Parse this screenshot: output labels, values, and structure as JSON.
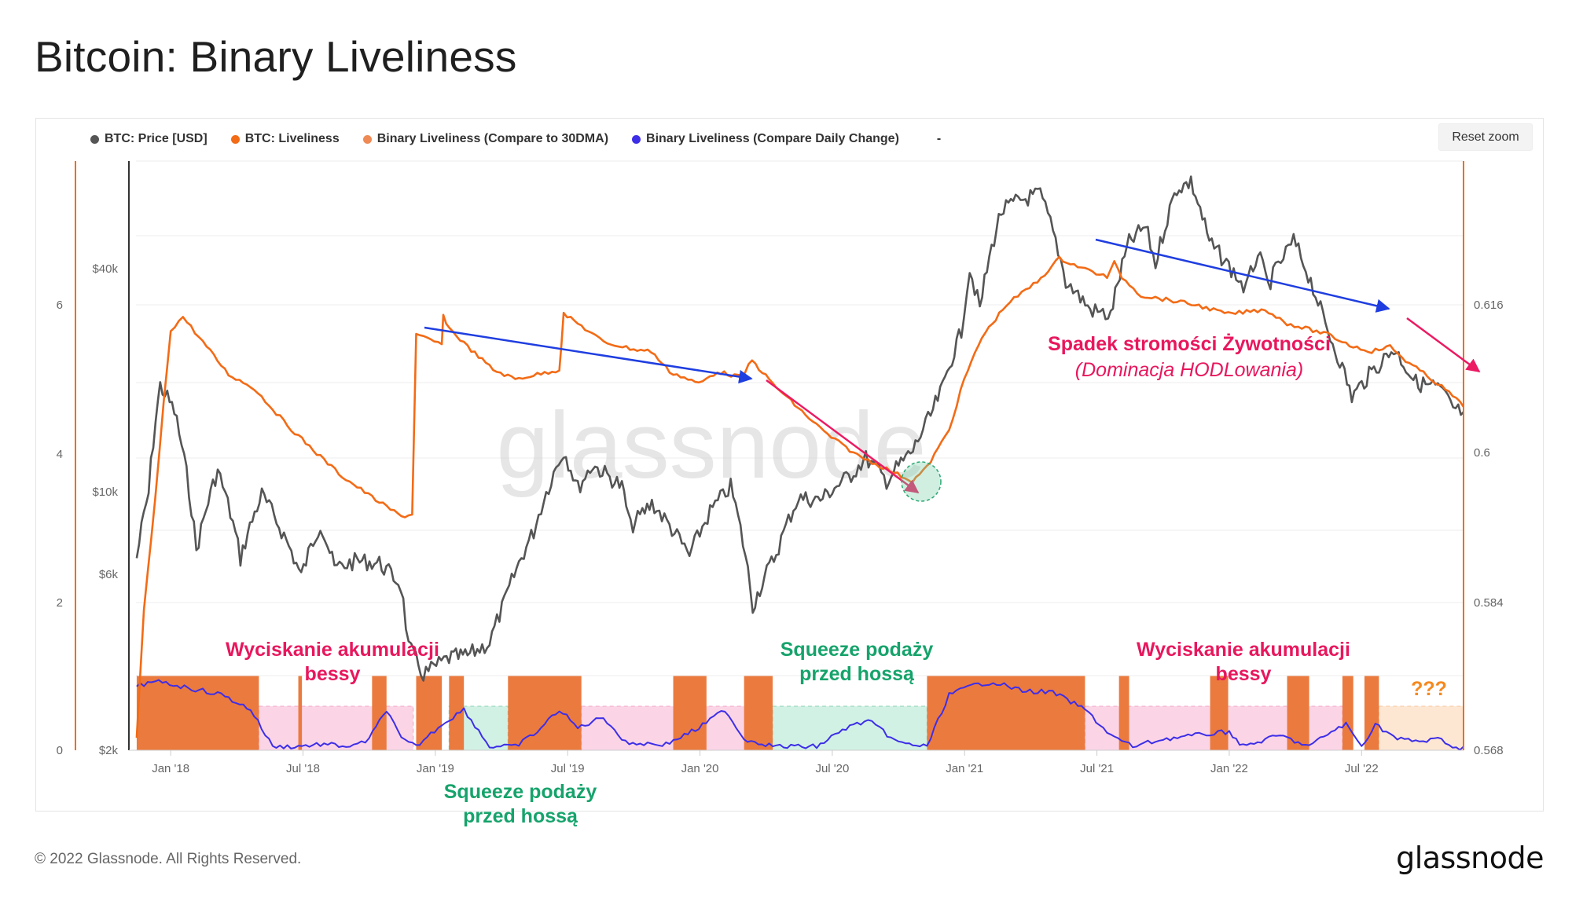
{
  "title": "Bitcoin: Binary Liveliness",
  "reset_zoom_label": "Reset zoom",
  "legend": {
    "items": [
      {
        "label": "BTC: Price [USD]",
        "color": "#555555"
      },
      {
        "label": "BTC: Liveliness",
        "color": "#f36b16"
      },
      {
        "label": "Binary Liveliness (Compare to 30DMA)",
        "color": "#ef8a55"
      },
      {
        "label": "Binary Liveliness (Compare Daily Change)",
        "color": "#3d2ee8"
      }
    ],
    "trailing": "-"
  },
  "watermark": "glassnode",
  "footer": {
    "copyright": "© 2022 Glassnode. All Rights Reserved.",
    "brand": "glassnode"
  },
  "annotations": {
    "bear_squeeze_1": [
      "Wyciskanie akumulacji",
      "bessy"
    ],
    "bear_squeeze_2": [
      "Wyciskanie akumulacji",
      "bessy"
    ],
    "supply_squeeze_1": [
      "Squeeze podaży",
      "przed hossą"
    ],
    "supply_squeeze_2": [
      "Squeeze podaży",
      "przed hossą"
    ],
    "steepness_drop": "Spadek stromości Żywotności",
    "hodl_dominance": "(Dominacja HODLowania)",
    "unknown": "???"
  },
  "colors": {
    "price": "#555555",
    "liveliness": "#f36b16",
    "binary_fill": "#eb7a3e",
    "daily_change": "#3d2ee8",
    "arrow_blue": "#1f3ee0",
    "arrow_pink": "#ec1a63",
    "pink_text": "#e8175d",
    "green_text": "#16a36b",
    "pink_zone": "#fbd5e6",
    "green_zone": "#d2f1e5",
    "unknown_zone": "#fde7d3",
    "unknown_text": "#f5891f"
  },
  "chart_data": {
    "type": "line",
    "x_axis": {
      "ticks": [
        "Jan '18",
        "Jul '18",
        "Jan '19",
        "Jul '19",
        "Jan '20",
        "Jul '20",
        "Jan '21",
        "Jul '21",
        "Jan '22",
        "Jul '22"
      ],
      "range": [
        "2017-11",
        "2022-11"
      ]
    },
    "y_axes": {
      "binary": {
        "ticks": [
          "0",
          "2",
          "4",
          "6"
        ],
        "range": [
          0,
          8
        ],
        "position": "left"
      },
      "price": {
        "ticks": [
          "$2k",
          "$6k",
          "$10k",
          "$40k"
        ],
        "scale": "log",
        "position": "left"
      },
      "liveliness": {
        "ticks": [
          "0.568",
          "0.584",
          "0.6",
          "0.616"
        ],
        "range": [
          0.568,
          0.6335
        ],
        "position": "right"
      }
    },
    "grid": true,
    "legend_position": "top-left",
    "series": [
      {
        "name": "BTC: Price [USD]",
        "axis": "price",
        "points": [
          [
            "2017-11-15",
            6600
          ],
          [
            "2017-12-01",
            9900
          ],
          [
            "2017-12-17",
            19300
          ],
          [
            "2018-01-06",
            16500
          ],
          [
            "2018-02-06",
            6900
          ],
          [
            "2018-03-05",
            11400
          ],
          [
            "2018-04-06",
            6600
          ],
          [
            "2018-05-05",
            9800
          ],
          [
            "2018-06-29",
            5900
          ],
          [
            "2018-07-25",
            8200
          ],
          [
            "2018-08-14",
            6200
          ],
          [
            "2018-09-15",
            6500
          ],
          [
            "2018-10-15",
            6400
          ],
          [
            "2018-11-14",
            5600
          ],
          [
            "2018-11-25",
            3800
          ],
          [
            "2018-12-15",
            3200
          ],
          [
            "2019-01-20",
            3550
          ],
          [
            "2019-02-15",
            3600
          ],
          [
            "2019-03-15",
            3900
          ],
          [
            "2019-04-05",
            5000
          ],
          [
            "2019-05-15",
            7800
          ],
          [
            "2019-06-26",
            12900
          ],
          [
            "2019-07-15",
            10200
          ],
          [
            "2019-08-05",
            11800
          ],
          [
            "2019-09-15",
            10300
          ],
          [
            "2019-09-27",
            8000
          ],
          [
            "2019-10-26",
            9300
          ],
          [
            "2019-12-17",
            6700
          ],
          [
            "2020-01-15",
            8800
          ],
          [
            "2020-02-13",
            10300
          ],
          [
            "2020-03-13",
            4900
          ],
          [
            "2020-04-15",
            6800
          ],
          [
            "2020-05-15",
            9600
          ],
          [
            "2020-06-15",
            9500
          ],
          [
            "2020-07-27",
            11100
          ],
          [
            "2020-08-17",
            12300
          ],
          [
            "2020-09-15",
            10700
          ],
          [
            "2020-10-21",
            12900
          ],
          [
            "2020-11-15",
            16000
          ],
          [
            "2020-12-01",
            19000
          ],
          [
            "2020-12-27",
            27000
          ],
          [
            "2021-01-08",
            40000
          ],
          [
            "2021-01-22",
            31000
          ],
          [
            "2021-02-21",
            57000
          ],
          [
            "2021-03-14",
            61000
          ],
          [
            "2021-04-14",
            63500
          ],
          [
            "2021-05-19",
            37000
          ],
          [
            "2021-06-22",
            31000
          ],
          [
            "2021-07-20",
            29800
          ],
          [
            "2021-08-15",
            47000
          ],
          [
            "2021-09-07",
            52000
          ],
          [
            "2021-09-21",
            41000
          ],
          [
            "2021-10-20",
            66000
          ],
          [
            "2021-11-09",
            68500
          ],
          [
            "2021-12-04",
            47000
          ],
          [
            "2022-01-24",
            35000
          ],
          [
            "2022-02-10",
            44000
          ],
          [
            "2022-02-24",
            36000
          ],
          [
            "2022-03-29",
            47500
          ],
          [
            "2022-05-12",
            28000
          ],
          [
            "2022-06-18",
            18000
          ],
          [
            "2022-08-15",
            24300
          ],
          [
            "2022-09-15",
            19700
          ],
          [
            "2022-10-15",
            19100
          ],
          [
            "2022-11-09",
            16500
          ],
          [
            "2022-11-20",
            16400
          ]
        ]
      },
      {
        "name": "BTC: Liveliness",
        "axis": "liveliness",
        "points": [
          [
            "2017-11-15",
            0.5692
          ],
          [
            "2017-11-25",
            0.583
          ],
          [
            "2017-12-10",
            0.595
          ],
          [
            "2017-12-22",
            0.6055
          ],
          [
            "2018-01-01",
            0.6133
          ],
          [
            "2018-01-18",
            0.6147
          ],
          [
            "2018-02-15",
            0.612
          ],
          [
            "2018-03-20",
            0.6085
          ],
          [
            "2018-04-25",
            0.607
          ],
          [
            "2018-06-10",
            0.603
          ],
          [
            "2018-07-20",
            0.6
          ],
          [
            "2018-08-25",
            0.5975
          ],
          [
            "2018-10-10",
            0.595
          ],
          [
            "2018-11-15",
            0.5932
          ],
          [
            "2018-11-30",
            0.5934
          ],
          [
            "2018-12-05",
            0.6128
          ],
          [
            "2018-12-30",
            0.612
          ],
          [
            "2019-01-10",
            0.6118
          ],
          [
            "2019-01-12",
            0.6148
          ],
          [
            "2019-01-20",
            0.6135
          ],
          [
            "2019-02-15",
            0.6115
          ],
          [
            "2019-03-20",
            0.609
          ],
          [
            "2019-04-20",
            0.608
          ],
          [
            "2019-05-20",
            0.6085
          ],
          [
            "2019-06-20",
            0.609
          ],
          [
            "2019-06-26",
            0.615
          ],
          [
            "2019-07-15",
            0.614
          ],
          [
            "2019-08-20",
            0.612
          ],
          [
            "2019-10-01",
            0.6112
          ],
          [
            "2019-10-25",
            0.611
          ],
          [
            "2019-11-20",
            0.6088
          ],
          [
            "2019-12-30",
            0.6075
          ],
          [
            "2020-01-25",
            0.6088
          ],
          [
            "2020-02-28",
            0.6082
          ],
          [
            "2020-03-12",
            0.61
          ],
          [
            "2020-04-10",
            0.6075
          ],
          [
            "2020-05-20",
            0.6045
          ],
          [
            "2020-06-25",
            0.602
          ],
          [
            "2020-08-05",
            0.5998
          ],
          [
            "2020-09-10",
            0.5985
          ],
          [
            "2020-10-20",
            0.597
          ],
          [
            "2020-11-10",
            0.5985
          ],
          [
            "2020-12-10",
            0.6025
          ],
          [
            "2020-12-31",
            0.608
          ],
          [
            "2021-01-25",
            0.6125
          ],
          [
            "2021-02-28",
            0.616
          ],
          [
            "2021-04-10",
            0.6185
          ],
          [
            "2021-05-10",
            0.621
          ],
          [
            "2021-06-10",
            0.62
          ],
          [
            "2021-07-15",
            0.619
          ],
          [
            "2021-07-25",
            0.6205
          ],
          [
            "2021-08-05",
            0.619
          ],
          [
            "2021-09-01",
            0.617
          ],
          [
            "2021-10-10",
            0.6165
          ],
          [
            "2021-11-15",
            0.616
          ],
          [
            "2021-12-30",
            0.615
          ],
          [
            "2022-02-20",
            0.6155
          ],
          [
            "2022-03-20",
            0.614
          ],
          [
            "2022-05-15",
            0.6128
          ],
          [
            "2022-06-20",
            0.6115
          ],
          [
            "2022-07-15",
            0.611
          ],
          [
            "2022-08-10",
            0.6115
          ],
          [
            "2022-09-01",
            0.61
          ],
          [
            "2022-10-15",
            0.6075
          ],
          [
            "2022-11-05",
            0.6062
          ],
          [
            "2022-11-20",
            0.605
          ]
        ]
      },
      {
        "name": "Binary Liveliness (Compare to 30DMA)",
        "axis": "binary",
        "type": "area",
        "segments": [
          [
            "2017-11-15",
            "2018-05-01",
            1
          ],
          [
            "2018-05-01",
            "2018-06-25",
            0
          ],
          [
            "2018-06-25",
            "2018-06-30",
            1
          ],
          [
            "2018-06-30",
            "2018-10-05",
            0
          ],
          [
            "2018-10-05",
            "2018-10-25",
            1
          ],
          [
            "2018-10-25",
            "2018-12-05",
            0
          ],
          [
            "2018-12-05",
            "2019-01-10",
            1
          ],
          [
            "2019-01-10",
            "2019-01-20",
            0
          ],
          [
            "2019-01-20",
            "2019-02-10",
            1
          ],
          [
            "2019-02-10",
            "2019-04-10",
            0
          ],
          [
            "2019-04-10",
            "2019-07-20",
            1
          ],
          [
            "2019-07-20",
            "2019-11-25",
            0
          ],
          [
            "2019-11-25",
            "2020-01-10",
            1
          ],
          [
            "2020-01-10",
            "2020-03-01",
            0
          ],
          [
            "2020-03-01",
            "2020-04-10",
            1
          ],
          [
            "2020-04-10",
            "2020-11-10",
            0
          ],
          [
            "2020-11-10",
            "2021-06-15",
            1
          ],
          [
            "2021-06-15",
            "2021-08-01",
            0
          ],
          [
            "2021-08-01",
            "2021-08-15",
            1
          ],
          [
            "2021-08-15",
            "2021-12-05",
            0
          ],
          [
            "2021-12-05",
            "2021-12-30",
            1
          ],
          [
            "2021-12-30",
            "2022-03-20",
            0
          ],
          [
            "2022-03-20",
            "2022-04-20",
            1
          ],
          [
            "2022-04-20",
            "2022-06-05",
            0
          ],
          [
            "2022-06-05",
            "2022-06-20",
            1
          ],
          [
            "2022-06-20",
            "2022-07-05",
            0
          ],
          [
            "2022-07-05",
            "2022-07-25",
            1
          ],
          [
            "2022-07-25",
            "2022-11-20",
            0
          ]
        ]
      },
      {
        "name": "Binary Liveliness (Compare Daily Change)",
        "axis": "binary",
        "points": [
          [
            "2017-11-15",
            0.88
          ],
          [
            "2017-12-20",
            0.92
          ],
          [
            "2018-01-20",
            0.85
          ],
          [
            "2018-03-10",
            0.75
          ],
          [
            "2018-04-20",
            0.55
          ],
          [
            "2018-05-20",
            0.05
          ],
          [
            "2018-06-20",
            0.05
          ],
          [
            "2018-07-25",
            0.08
          ],
          [
            "2018-09-10",
            0.05
          ],
          [
            "2018-10-01",
            0.15
          ],
          [
            "2018-10-25",
            0.55
          ],
          [
            "2018-11-15",
            0.15
          ],
          [
            "2018-12-05",
            0.05
          ],
          [
            "2019-01-10",
            0.35
          ],
          [
            "2019-02-10",
            0.55
          ],
          [
            "2019-03-15",
            0.05
          ],
          [
            "2019-04-20",
            0.05
          ],
          [
            "2019-05-20",
            0.25
          ],
          [
            "2019-06-20",
            0.55
          ],
          [
            "2019-07-15",
            0.3
          ],
          [
            "2019-08-20",
            0.45
          ],
          [
            "2019-09-20",
            0.1
          ],
          [
            "2019-11-15",
            0.08
          ],
          [
            "2019-12-30",
            0.3
          ],
          [
            "2020-02-05",
            0.55
          ],
          [
            "2020-03-01",
            0.15
          ],
          [
            "2020-04-15",
            0.05
          ],
          [
            "2020-06-10",
            0.05
          ],
          [
            "2020-07-20",
            0.3
          ],
          [
            "2020-08-20",
            0.4
          ],
          [
            "2020-10-01",
            0.1
          ],
          [
            "2020-11-10",
            0.05
          ],
          [
            "2020-12-10",
            0.75
          ],
          [
            "2021-01-15",
            0.88
          ],
          [
            "2021-02-10",
            0.92
          ],
          [
            "2021-03-20",
            0.8
          ],
          [
            "2021-05-01",
            0.78
          ],
          [
            "2021-06-15",
            0.55
          ],
          [
            "2021-07-20",
            0.2
          ],
          [
            "2021-08-20",
            0.05
          ],
          [
            "2021-10-01",
            0.15
          ],
          [
            "2021-11-15",
            0.2
          ],
          [
            "2022-01-01",
            0.25
          ],
          [
            "2022-01-20",
            0.05
          ],
          [
            "2022-03-10",
            0.2
          ],
          [
            "2022-04-20",
            0.05
          ],
          [
            "2022-05-20",
            0.25
          ],
          [
            "2022-06-10",
            0.35
          ],
          [
            "2022-07-01",
            0.05
          ],
          [
            "2022-07-20",
            0.35
          ],
          [
            "2022-08-20",
            0.15
          ],
          [
            "2022-09-20",
            0.12
          ],
          [
            "2022-10-20",
            0.15
          ],
          [
            "2022-11-10",
            0.02
          ],
          [
            "2022-11-20",
            0.05
          ]
        ]
      }
    ]
  }
}
